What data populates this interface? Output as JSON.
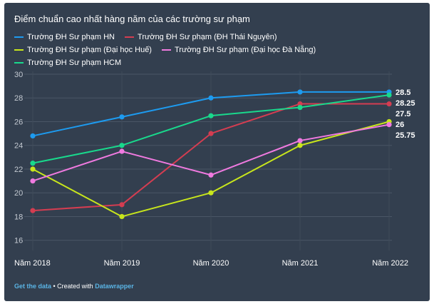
{
  "chart_data": {
    "type": "line",
    "title": "Điểm chuẩn cao nhất hàng năm của các trường sư phạm",
    "categories": [
      "Năm 2018",
      "Năm 2019",
      "Năm 2020",
      "Năm 2021",
      "Năm 2022"
    ],
    "yticks": [
      16,
      18,
      20,
      22,
      24,
      26,
      28,
      30
    ],
    "ylim": [
      15.5,
      30
    ],
    "grid": true,
    "legend_position": "top",
    "series": [
      {
        "name": "Trường ĐH Sư phạm HN",
        "color": "#1d9bf0",
        "values": [
          24.8,
          26.4,
          28,
          28.5,
          28.5
        ],
        "end_label": "28.5"
      },
      {
        "name": "Trường ĐH Sư phạm (ĐH Thái Nguyên)",
        "color": "#d43d51",
        "values": [
          18.5,
          19,
          25,
          27.5,
          27.5
        ],
        "end_label": "27.5"
      },
      {
        "name": "Trường ĐH Sư phạm (Đại học Huế)",
        "color": "#c8e61c",
        "values": [
          22,
          18,
          20,
          24,
          26
        ],
        "end_label": "26"
      },
      {
        "name": "Trường ĐH Sư phạm (Đại học Đà Nẵng)",
        "color": "#f07ae0",
        "values": [
          21,
          23.5,
          21.5,
          24.4,
          25.75
        ],
        "end_label": "25.75"
      },
      {
        "name": "Trường ĐH Sư phạm HCM",
        "color": "#19d98c",
        "values": [
          22.5,
          24,
          26.5,
          27.2,
          28.25
        ],
        "end_label": "28.25"
      }
    ]
  },
  "footer": {
    "get_data": "Get the data",
    "separator": " • Created with ",
    "tool": "Datawrapper"
  }
}
